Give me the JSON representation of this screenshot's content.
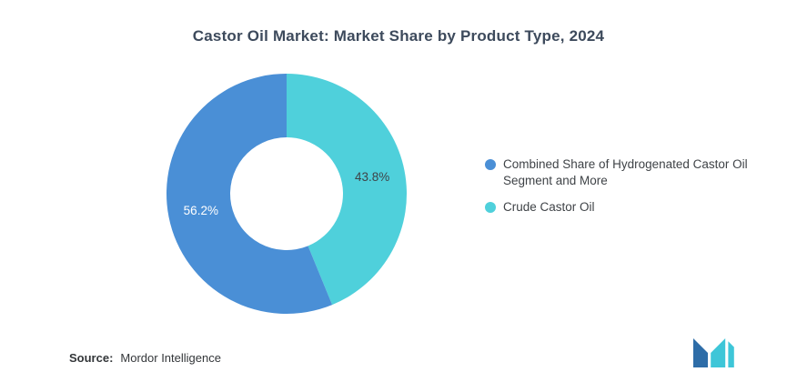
{
  "title": "Castor Oil Market: Market Share by Product Type, 2024",
  "chart_data": {
    "type": "pie",
    "subtype": "donut",
    "title": "Castor Oil Market: Market Share by Product Type, 2024",
    "start_angle_deg": 0,
    "direction": "clockwise",
    "legend_position": "right",
    "slices": [
      {
        "label": "Crude Castor Oil",
        "value": 43.8,
        "display": "43.8%",
        "color": "#4FD0DB",
        "label_color": "#3f4347"
      },
      {
        "label": "Combined Share of Hydrogenated Castor Oil Segment and More",
        "value": 56.2,
        "display": "56.2%",
        "color": "#4A8FD6",
        "label_color": "#ffffff"
      }
    ]
  },
  "legend": {
    "items": [
      {
        "label": "Combined Share of Hydrogenated Castor Oil Segment and More",
        "color": "#4A8FD6"
      },
      {
        "label": "Crude Castor Oil",
        "color": "#4FD0DB"
      }
    ]
  },
  "footer": {
    "source_label": "Source:",
    "source_value": "Mordor Intelligence"
  },
  "logo": {
    "name": "mordor-intelligence-logo",
    "colors": {
      "blue": "#2E6DA8",
      "teal": "#3EC6D8"
    }
  }
}
